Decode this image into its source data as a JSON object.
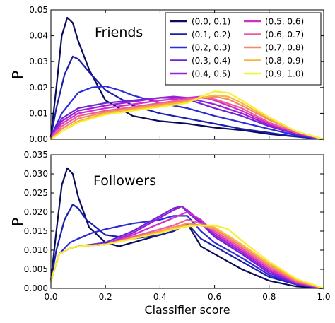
{
  "chart_data": [
    {
      "type": "line",
      "annotation": "Friends",
      "ylabel": "P",
      "xlabel": "",
      "xlim": [
        0.0,
        1.0
      ],
      "ylim": [
        0.0,
        0.05
      ],
      "yticks": [
        "0.00",
        "0.01",
        "0.02",
        "0.03",
        "0.04",
        "0.05"
      ],
      "xticks": [],
      "legend": {
        "placement": "top-right",
        "columns": 2,
        "labels": [
          "(0.0, 0.1)",
          "(0.1, 0.2)",
          "(0.2, 0.3)",
          "(0.3, 0.4)",
          "(0.4, 0.5)",
          "(0.5, 0.6)",
          "(0.6, 0.7)",
          "(0.7, 0.8)",
          "(0.8, 0.9)",
          "(0.9, 1.0)"
        ]
      },
      "series": [
        {
          "name": "(0.0, 0.1)",
          "color": "#0b0b5a",
          "x": [
            0.0,
            0.02,
            0.04,
            0.06,
            0.08,
            0.1,
            0.14,
            0.2,
            0.3,
            0.4,
            0.5,
            0.6,
            0.7,
            0.8,
            0.9,
            1.0
          ],
          "y": [
            0.001,
            0.02,
            0.04,
            0.047,
            0.045,
            0.038,
            0.027,
            0.015,
            0.009,
            0.007,
            0.006,
            0.0045,
            0.0035,
            0.002,
            0.001,
            0.0
          ]
        },
        {
          "name": "(0.1, 0.2)",
          "color": "#1a20a8",
          "x": [
            0.0,
            0.02,
            0.05,
            0.08,
            0.1,
            0.14,
            0.2,
            0.3,
            0.4,
            0.5,
            0.6,
            0.7,
            0.8,
            0.9,
            1.0
          ],
          "y": [
            0.001,
            0.012,
            0.025,
            0.032,
            0.031,
            0.026,
            0.019,
            0.013,
            0.01,
            0.008,
            0.006,
            0.004,
            0.0025,
            0.001,
            0.0
          ]
        },
        {
          "name": "(0.2, 0.3)",
          "color": "#2b2bd9",
          "x": [
            0.0,
            0.04,
            0.1,
            0.15,
            0.2,
            0.25,
            0.3,
            0.4,
            0.5,
            0.6,
            0.7,
            0.8,
            0.9,
            1.0
          ],
          "y": [
            0.001,
            0.01,
            0.018,
            0.02,
            0.0205,
            0.019,
            0.017,
            0.014,
            0.012,
            0.009,
            0.0065,
            0.004,
            0.0015,
            0.0
          ]
        },
        {
          "name": "(0.3, 0.4)",
          "color": "#6a25d6",
          "x": [
            0.0,
            0.04,
            0.1,
            0.2,
            0.3,
            0.4,
            0.45,
            0.5,
            0.6,
            0.7,
            0.8,
            0.9,
            1.0
          ],
          "y": [
            0.001,
            0.008,
            0.012,
            0.014,
            0.015,
            0.016,
            0.016,
            0.0155,
            0.012,
            0.009,
            0.005,
            0.002,
            0.0
          ]
        },
        {
          "name": "(0.4, 0.5)",
          "color": "#9c1fd8",
          "x": [
            0.0,
            0.04,
            0.1,
            0.2,
            0.3,
            0.4,
            0.45,
            0.5,
            0.6,
            0.7,
            0.8,
            0.9,
            1.0
          ],
          "y": [
            0.001,
            0.007,
            0.011,
            0.013,
            0.0145,
            0.016,
            0.0165,
            0.016,
            0.0135,
            0.01,
            0.0055,
            0.002,
            0.0
          ]
        },
        {
          "name": "(0.5, 0.6)",
          "color": "#d12ec8",
          "x": [
            0.0,
            0.04,
            0.1,
            0.2,
            0.3,
            0.4,
            0.5,
            0.55,
            0.6,
            0.7,
            0.8,
            0.9,
            1.0
          ],
          "y": [
            0.001,
            0.006,
            0.01,
            0.012,
            0.0135,
            0.015,
            0.016,
            0.0165,
            0.015,
            0.011,
            0.006,
            0.0025,
            0.0
          ]
        },
        {
          "name": "(0.6, 0.7)",
          "color": "#ec5c9a",
          "x": [
            0.0,
            0.04,
            0.1,
            0.2,
            0.3,
            0.4,
            0.5,
            0.55,
            0.6,
            0.7,
            0.8,
            0.9,
            1.0
          ],
          "y": [
            0.0,
            0.005,
            0.009,
            0.011,
            0.0125,
            0.014,
            0.0155,
            0.016,
            0.0155,
            0.012,
            0.0065,
            0.0025,
            0.0
          ]
        },
        {
          "name": "(0.7, 0.8)",
          "color": "#f6886a",
          "x": [
            0.0,
            0.04,
            0.1,
            0.2,
            0.3,
            0.4,
            0.5,
            0.55,
            0.6,
            0.65,
            0.7,
            0.8,
            0.9,
            1.0
          ],
          "y": [
            0.0,
            0.004,
            0.008,
            0.0105,
            0.012,
            0.0135,
            0.015,
            0.016,
            0.0165,
            0.0155,
            0.013,
            0.0075,
            0.003,
            0.0
          ]
        },
        {
          "name": "(0.8, 0.9)",
          "color": "#fbb43a",
          "x": [
            0.0,
            0.04,
            0.1,
            0.2,
            0.3,
            0.4,
            0.5,
            0.55,
            0.6,
            0.65,
            0.7,
            0.8,
            0.9,
            1.0
          ],
          "y": [
            0.0,
            0.003,
            0.007,
            0.01,
            0.0115,
            0.013,
            0.0145,
            0.016,
            0.017,
            0.0165,
            0.014,
            0.008,
            0.003,
            0.0
          ]
        },
        {
          "name": "(0.9, 1.0)",
          "color": "#f5f032",
          "x": [
            0.0,
            0.04,
            0.1,
            0.2,
            0.3,
            0.4,
            0.5,
            0.55,
            0.6,
            0.65,
            0.7,
            0.8,
            0.9,
            1.0
          ],
          "y": [
            0.0,
            0.003,
            0.0065,
            0.0095,
            0.011,
            0.0125,
            0.014,
            0.0165,
            0.0185,
            0.018,
            0.015,
            0.0085,
            0.003,
            0.0
          ]
        }
      ]
    },
    {
      "type": "line",
      "annotation": "Followers",
      "ylabel": "P",
      "xlabel": "Classifier score",
      "xlim": [
        0.0,
        1.0
      ],
      "ylim": [
        0.0,
        0.035
      ],
      "yticks": [
        "0.000",
        "0.005",
        "0.010",
        "0.015",
        "0.020",
        "0.025",
        "0.030",
        "0.035"
      ],
      "xticks": [
        "0.0",
        "0.2",
        "0.4",
        "0.6",
        "0.8",
        "1.0"
      ],
      "series": [
        {
          "name": "(0.0, 0.1)",
          "color": "#0b0b5a",
          "x": [
            0.0,
            0.02,
            0.04,
            0.06,
            0.08,
            0.1,
            0.14,
            0.2,
            0.25,
            0.3,
            0.35,
            0.4,
            0.45,
            0.5,
            0.55,
            0.6,
            0.65,
            0.7,
            0.8,
            0.9,
            1.0
          ],
          "y": [
            0.002,
            0.015,
            0.027,
            0.0315,
            0.03,
            0.024,
            0.016,
            0.012,
            0.011,
            0.012,
            0.013,
            0.014,
            0.015,
            0.017,
            0.011,
            0.009,
            0.007,
            0.005,
            0.002,
            0.0005,
            0.0
          ]
        },
        {
          "name": "(0.1, 0.2)",
          "color": "#1a20a8",
          "x": [
            0.0,
            0.02,
            0.05,
            0.08,
            0.1,
            0.13,
            0.2,
            0.3,
            0.4,
            0.45,
            0.5,
            0.55,
            0.6,
            0.7,
            0.8,
            0.9,
            1.0
          ],
          "y": [
            0.002,
            0.01,
            0.018,
            0.022,
            0.021,
            0.018,
            0.014,
            0.013,
            0.014,
            0.015,
            0.017,
            0.013,
            0.011,
            0.007,
            0.003,
            0.001,
            0.0
          ]
        },
        {
          "name": "(0.2, 0.3)",
          "color": "#2b2bd9",
          "x": [
            0.0,
            0.03,
            0.07,
            0.1,
            0.15,
            0.2,
            0.3,
            0.4,
            0.45,
            0.5,
            0.55,
            0.6,
            0.7,
            0.8,
            0.9,
            1.0
          ],
          "y": [
            0.002,
            0.009,
            0.012,
            0.013,
            0.0145,
            0.0155,
            0.017,
            0.018,
            0.019,
            0.019,
            0.015,
            0.012,
            0.008,
            0.0035,
            0.001,
            0.0
          ]
        },
        {
          "name": "(0.3, 0.4)",
          "color": "#6a25d6",
          "x": [
            0.0,
            0.03,
            0.07,
            0.1,
            0.2,
            0.3,
            0.4,
            0.45,
            0.48,
            0.5,
            0.55,
            0.6,
            0.7,
            0.8,
            0.9,
            1.0
          ],
          "y": [
            0.002,
            0.009,
            0.0105,
            0.011,
            0.012,
            0.015,
            0.019,
            0.021,
            0.0215,
            0.02,
            0.017,
            0.0135,
            0.009,
            0.004,
            0.0012,
            0.0
          ]
        },
        {
          "name": "(0.4, 0.5)",
          "color": "#9c1fd8",
          "x": [
            0.0,
            0.03,
            0.07,
            0.1,
            0.2,
            0.3,
            0.4,
            0.45,
            0.48,
            0.5,
            0.55,
            0.6,
            0.7,
            0.8,
            0.9,
            1.0
          ],
          "y": [
            0.002,
            0.009,
            0.0105,
            0.011,
            0.0115,
            0.0145,
            0.0185,
            0.0205,
            0.0215,
            0.0205,
            0.0175,
            0.014,
            0.0095,
            0.0045,
            0.0013,
            0.0
          ]
        },
        {
          "name": "(0.5, 0.6)",
          "color": "#d12ec8",
          "x": [
            0.0,
            0.03,
            0.07,
            0.1,
            0.2,
            0.3,
            0.4,
            0.45,
            0.5,
            0.55,
            0.6,
            0.7,
            0.8,
            0.9,
            1.0
          ],
          "y": [
            0.002,
            0.009,
            0.0105,
            0.011,
            0.0115,
            0.014,
            0.017,
            0.0185,
            0.02,
            0.018,
            0.0145,
            0.01,
            0.005,
            0.0015,
            0.0
          ]
        },
        {
          "name": "(0.6, 0.7)",
          "color": "#ec5c9a",
          "x": [
            0.0,
            0.03,
            0.07,
            0.1,
            0.2,
            0.3,
            0.4,
            0.45,
            0.5,
            0.55,
            0.6,
            0.7,
            0.8,
            0.9,
            1.0
          ],
          "y": [
            0.002,
            0.009,
            0.0105,
            0.011,
            0.0115,
            0.0135,
            0.0155,
            0.0165,
            0.018,
            0.017,
            0.015,
            0.0105,
            0.0055,
            0.0017,
            0.0
          ]
        },
        {
          "name": "(0.7, 0.8)",
          "color": "#f6886a",
          "x": [
            0.0,
            0.03,
            0.07,
            0.1,
            0.2,
            0.3,
            0.4,
            0.45,
            0.5,
            0.55,
            0.6,
            0.7,
            0.8,
            0.9,
            1.0
          ],
          "y": [
            0.002,
            0.009,
            0.0105,
            0.011,
            0.0115,
            0.0132,
            0.015,
            0.016,
            0.017,
            0.0165,
            0.0155,
            0.011,
            0.006,
            0.002,
            0.0
          ]
        },
        {
          "name": "(0.8, 0.9)",
          "color": "#fbb43a",
          "x": [
            0.0,
            0.03,
            0.07,
            0.1,
            0.2,
            0.3,
            0.4,
            0.45,
            0.5,
            0.55,
            0.6,
            0.7,
            0.8,
            0.9,
            1.0
          ],
          "y": [
            0.002,
            0.009,
            0.0105,
            0.011,
            0.0115,
            0.013,
            0.0148,
            0.0158,
            0.0165,
            0.0165,
            0.016,
            0.0115,
            0.0065,
            0.0022,
            0.0
          ]
        },
        {
          "name": "(0.9, 1.0)",
          "color": "#f5f032",
          "x": [
            0.0,
            0.03,
            0.07,
            0.1,
            0.2,
            0.3,
            0.4,
            0.45,
            0.5,
            0.55,
            0.6,
            0.65,
            0.7,
            0.8,
            0.9,
            1.0
          ],
          "y": [
            0.002,
            0.009,
            0.0105,
            0.011,
            0.0115,
            0.013,
            0.0145,
            0.0155,
            0.0162,
            0.0165,
            0.0165,
            0.0155,
            0.0125,
            0.007,
            0.0025,
            0.0
          ]
        }
      ]
    }
  ]
}
